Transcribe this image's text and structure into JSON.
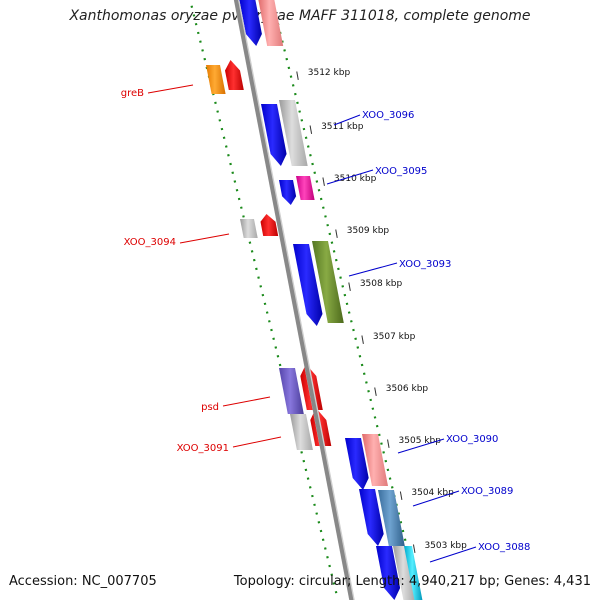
{
  "title": "Xanthomonas oryzae pv. oryzae MAFF 311018, complete genome",
  "footer": {
    "accession": "Accession: NC_007705",
    "summary": "Topology: circular; Length: 4,940,217 bp; Genes: 4,431"
  },
  "ticks": [
    "3512 kbp",
    "3511 kbp",
    "3510 kbp",
    "3509 kbp",
    "3508 kbp",
    "3507 kbp",
    "3506 kbp",
    "3505 kbp",
    "3504 kbp",
    "3503 kbp"
  ],
  "gene_labels": {
    "left": [
      "greB",
      "XOO_3094",
      "psd",
      "XOO_3091"
    ],
    "right": [
      "XOO_3096",
      "XOO_3095",
      "XOO_3093",
      "XOO_3090",
      "XOO_3089",
      "XOO_3088"
    ]
  },
  "colors": {
    "left_label": "#dd0000",
    "right_label": "#0000cc",
    "backbone": "#888888",
    "dotted_track": "#1a8a1a"
  }
}
